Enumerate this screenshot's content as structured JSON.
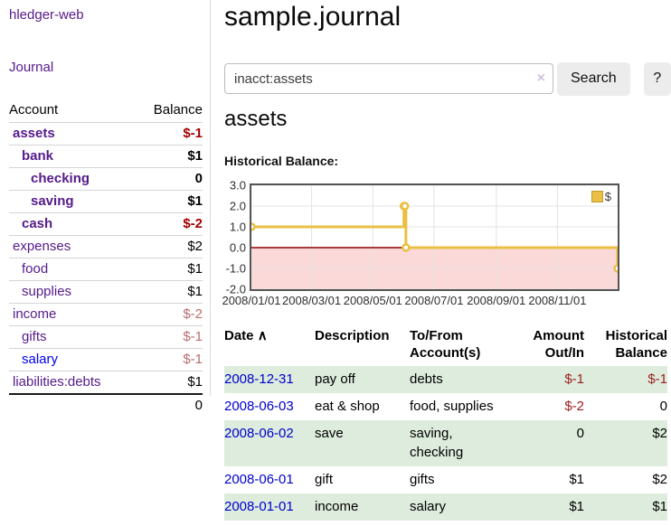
{
  "app": {
    "brand": "hledger-web"
  },
  "sidebar": {
    "journal_link": "Journal",
    "headers": {
      "account": "Account",
      "balance": "Balance"
    },
    "accounts": [
      {
        "name": "assets",
        "balance": "$-1"
      },
      {
        "name": "bank",
        "balance": "$1"
      },
      {
        "name": "checking",
        "balance": "0"
      },
      {
        "name": "saving",
        "balance": "$1"
      },
      {
        "name": "cash",
        "balance": "$-2"
      },
      {
        "name": "expenses",
        "balance": "$2"
      },
      {
        "name": "food",
        "balance": "$1"
      },
      {
        "name": "supplies",
        "balance": "$1"
      },
      {
        "name": "income",
        "balance": "$-2"
      },
      {
        "name": "gifts",
        "balance": "$-1"
      },
      {
        "name": "salary",
        "balance": "$-1"
      },
      {
        "name": "liabilities:debts",
        "balance": "$1"
      }
    ],
    "total": "0"
  },
  "main": {
    "title": "sample.journal",
    "search": {
      "value": "inacct:assets",
      "clear_icon": "×",
      "search_button": "Search",
      "help_button": "?"
    },
    "account_heading": "assets",
    "chart_title": "Historical Balance:"
  },
  "chart_data": {
    "type": "line",
    "step": true,
    "title": "Historical Balance",
    "xlim": [
      "2008-01-01",
      "2008-12-31"
    ],
    "ylim": [
      -2.0,
      3.0
    ],
    "x_ticks": [
      "2008/01/01",
      "2008/03/01",
      "2008/05/01",
      "2008/07/01",
      "2008/09/01",
      "2008/11/01"
    ],
    "y_ticks": [
      3.0,
      2.0,
      1.0,
      0.0,
      -1.0,
      -2.0
    ],
    "grid": true,
    "legend_position": "top-right",
    "series": [
      {
        "name": "$",
        "color": "#e9c044",
        "points": [
          [
            "2008-01-01",
            1
          ],
          [
            "2008-06-01",
            2
          ],
          [
            "2008-06-02",
            2
          ],
          [
            "2008-06-03",
            0
          ],
          [
            "2008-12-31",
            -1
          ]
        ]
      }
    ],
    "negative_region_color": "#fcd9d9",
    "zero_line_color": "#8b0000",
    "grid_color": "#e3e3e3",
    "border_color": "#545454"
  },
  "register": {
    "headers": {
      "date": "Date",
      "sort_arrow": "∧",
      "description": "Description",
      "tofrom": "To/From Account(s)",
      "amount": "Amount Out/In",
      "balance": "Historical Balance"
    },
    "rows": [
      {
        "date": "2008-12-31",
        "description": "pay off",
        "tofrom": "debts",
        "amount": "$-1",
        "balance": "$-1"
      },
      {
        "date": "2008-06-03",
        "description": "eat & shop",
        "tofrom": "food, supplies",
        "amount": "$-2",
        "balance": "0"
      },
      {
        "date": "2008-06-02",
        "description": "save",
        "tofrom": "saving, checking",
        "amount": "0",
        "balance": "$2"
      },
      {
        "date": "2008-06-01",
        "description": "gift",
        "tofrom": "gifts",
        "amount": "$1",
        "balance": "$2"
      },
      {
        "date": "2008-01-01",
        "description": "income",
        "tofrom": "salary",
        "amount": "$1",
        "balance": "$1"
      }
    ]
  }
}
